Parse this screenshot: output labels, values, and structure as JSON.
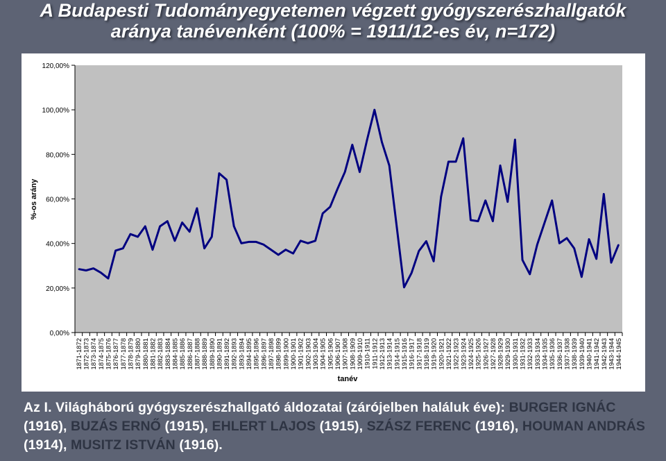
{
  "title": {
    "line1": "A Budapesti Tudományegyetemen végzett gyógyszerészhallgatók",
    "line2": "aránya tanévenként (100% = 1911/12-es év, n=172)"
  },
  "chart_data": {
    "type": "line",
    "xlabel": "tanév",
    "ylabel": "%-os arány",
    "ylim": [
      0,
      120
    ],
    "yticks": [
      "0,00%",
      "20,00%",
      "40,00%",
      "60,00%",
      "80,00%",
      "100,00%",
      "120,00%"
    ],
    "grid": false,
    "plot_background": "#c0c0c0",
    "line_color": "#000080",
    "categories": [
      "1871-1872",
      "1872-1873",
      "1873-1874",
      "1874-1875",
      "1875-1876",
      "1876-1877",
      "1877-1878",
      "1878-1879",
      "1879-1880",
      "1880-1881",
      "1881-1882",
      "1882-1883",
      "1883-1884",
      "1884-1885",
      "1885-1886",
      "1886-1887",
      "1887-1888",
      "1888-1889",
      "1889-1890",
      "1890-1891",
      "1891-1892",
      "1892-1893",
      "1893-1894",
      "1894-1895",
      "1895-1896",
      "1896-1897",
      "1897-1898",
      "1898-1899",
      "1899-1900",
      "1900-1901",
      "1901-1902",
      "1902-1903",
      "1903-1904",
      "1904-1905",
      "1905-1906",
      "1906-1907",
      "1907-1908",
      "1908-1909",
      "1909-1910",
      "1910-1911",
      "1911-1912",
      "1912-1913",
      "1913-1914",
      "1914-1915",
      "1915-1916",
      "1916-1917",
      "1917-1918",
      "1918-1919",
      "1919-1920",
      "1920-1921",
      "1921-1922",
      "1922-1923",
      "1923-1924",
      "1924-1925",
      "1925-1926",
      "1926-1927",
      "1927-1928",
      "1928-1929",
      "1929-1930",
      "1930-1931",
      "1931-1932",
      "1932-1933",
      "1933-1934",
      "1934-1935",
      "1935-1936",
      "1936-1937",
      "1937-1938",
      "1938-1939",
      "1939-1940",
      "1940-1941",
      "1941-1942",
      "1942-1943",
      "1943-1944",
      "1944-1945"
    ],
    "values": [
      28.5,
      27.9,
      28.8,
      26.9,
      24.3,
      36.8,
      37.8,
      44.2,
      43.0,
      47.7,
      37.2,
      47.7,
      50.0,
      41.2,
      49.4,
      45.3,
      55.8,
      37.8,
      43.0,
      71.5,
      68.6,
      47.7,
      40.1,
      40.7,
      40.7,
      39.5,
      37.2,
      34.9,
      37.2,
      35.5,
      41.2,
      40.1,
      41.2,
      53.5,
      56.4,
      64.5,
      72.1,
      84.3,
      72.1,
      86.6,
      100.0,
      85.5,
      75.0,
      47.7,
      20.3,
      26.7,
      36.6,
      41.0,
      32.0,
      61.0,
      76.7,
      76.7,
      87.2,
      50.5,
      50.0,
      59.3,
      50.0,
      75.0,
      58.7,
      86.6,
      32.6,
      26.2,
      39.5,
      49.4,
      59.3,
      40.1,
      42.4,
      37.8,
      25.0,
      41.9,
      33.1,
      62.2,
      31.4,
      39.5
    ]
  },
  "caption": {
    "intro": "Az I. Világháború gyógyszerészhallgató áldozatai (zárójelben haláluk éve):",
    "victims": [
      {
        "name": "BURGER IGNÁC",
        "year": "(1916)",
        "sep": ", "
      },
      {
        "name": "BUZÁS ERNŐ",
        "year": "(1915)",
        "sep": ", "
      },
      {
        "name": "EHLERT LAJOS",
        "year": "(1915)",
        "sep": ", "
      },
      {
        "name": "SZÁSZ FERENC",
        "year": "(1916)",
        "sep": ", "
      },
      {
        "name": "HOUMAN ANDRÁS",
        "year": "(1914)",
        "sep": ", "
      },
      {
        "name": "MUSITZ ISTVÁN",
        "year": "(1916)",
        "sep": "."
      }
    ]
  }
}
